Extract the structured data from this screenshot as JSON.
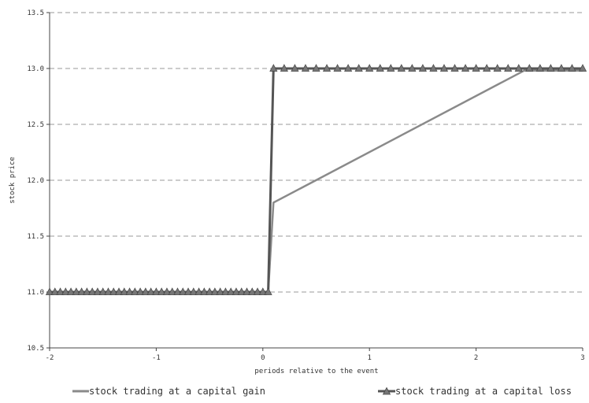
{
  "chart_data": {
    "type": "line",
    "xlabel": "periods relative to the event",
    "ylabel": "stock price",
    "xlim": [
      -2,
      3
    ],
    "ylim": [
      10.5,
      13.5
    ],
    "x_ticks": [
      "-2",
      "-1",
      "0",
      "1",
      "2",
      "3"
    ],
    "y_ticks": [
      "10.5",
      "11.0",
      "11.5",
      "12.0",
      "12.5",
      "13.0",
      "13.5"
    ],
    "grid": "horizontal dashed",
    "legend_position": "bottom",
    "series": [
      {
        "name": "stock trading at a capital gain",
        "color": "#8a8a8a",
        "marker": "none",
        "x": [
          -2,
          0.05,
          0.1,
          2.45,
          3
        ],
        "y": [
          11.0,
          11.0,
          11.8,
          12.98,
          12.98
        ]
      },
      {
        "name": "stock trading at a capital loss",
        "color": "#555555",
        "marker": "triangle",
        "x": [
          -2,
          -1.95,
          -1.9,
          -1.85,
          -1.8,
          -1.75,
          -1.7,
          -1.65,
          -1.6,
          -1.55,
          -1.5,
          -1.45,
          -1.4,
          -1.35,
          -1.3,
          -1.25,
          -1.2,
          -1.15,
          -1.1,
          -1.05,
          -1.0,
          -0.95,
          -0.9,
          -0.85,
          -0.8,
          -0.75,
          -0.7,
          -0.65,
          -0.6,
          -0.55,
          -0.5,
          -0.45,
          -0.4,
          -0.35,
          -0.3,
          -0.25,
          -0.2,
          -0.15,
          -0.1,
          -0.05,
          0.0,
          0.05,
          0.1,
          0.2,
          0.3,
          0.4,
          0.5,
          0.6,
          0.7,
          0.8,
          0.9,
          1.0,
          1.1,
          1.2,
          1.3,
          1.4,
          1.5,
          1.6,
          1.7,
          1.8,
          1.9,
          2.0,
          2.1,
          2.2,
          2.3,
          2.4,
          2.5,
          2.6,
          2.7,
          2.8,
          2.9,
          3.0
        ],
        "y": [
          11.0,
          11.0,
          11.0,
          11.0,
          11.0,
          11.0,
          11.0,
          11.0,
          11.0,
          11.0,
          11.0,
          11.0,
          11.0,
          11.0,
          11.0,
          11.0,
          11.0,
          11.0,
          11.0,
          11.0,
          11.0,
          11.0,
          11.0,
          11.0,
          11.0,
          11.0,
          11.0,
          11.0,
          11.0,
          11.0,
          11.0,
          11.0,
          11.0,
          11.0,
          11.0,
          11.0,
          11.0,
          11.0,
          11.0,
          11.0,
          11.0,
          11.0,
          13.0,
          13.0,
          13.0,
          13.0,
          13.0,
          13.0,
          13.0,
          13.0,
          13.0,
          13.0,
          13.0,
          13.0,
          13.0,
          13.0,
          13.0,
          13.0,
          13.0,
          13.0,
          13.0,
          13.0,
          13.0,
          13.0,
          13.0,
          13.0,
          13.0,
          13.0,
          13.0,
          13.0,
          13.0,
          13.0
        ]
      }
    ]
  }
}
